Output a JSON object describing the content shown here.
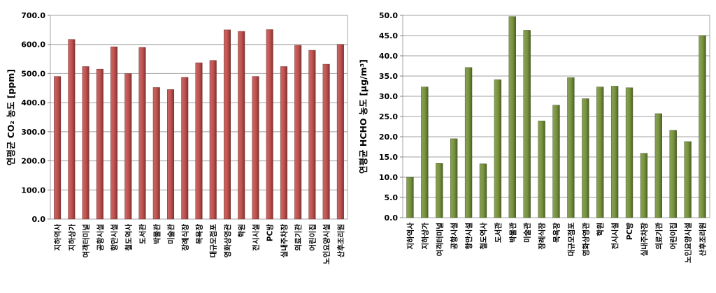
{
  "chart_data": [
    {
      "type": "bar",
      "ylabel": "연평균 CO₂ 농도 [ppm]",
      "ylim": [
        0,
        700
      ],
      "ytick_step": 100,
      "ytick_labels": [
        "0.0",
        "100.0",
        "200.0",
        "300.0",
        "400.0",
        "500.0",
        "600.0",
        "700.0"
      ],
      "grid": true,
      "bar_color": "#c0504d",
      "categories": [
        "지하역사",
        "지하상가",
        "여객터미널",
        "공항시설",
        "항만시설",
        "철도역사",
        "도서관",
        "박물관",
        "미술관",
        "장례식장",
        "목욕장",
        "대규모점포",
        "영화상영관",
        "학원",
        "전시시설",
        "PC방",
        "실내주차장",
        "의료기관",
        "어린이집",
        "노인요양시설",
        "산후조리원"
      ],
      "values": [
        490,
        617,
        524,
        515,
        592,
        500,
        590,
        452,
        445,
        487,
        537,
        545,
        650,
        645,
        490,
        651,
        524,
        597,
        580,
        532,
        600
      ]
    },
    {
      "type": "bar",
      "ylabel": "연평균 HCHO 농도 [μg/m³]",
      "ylim": [
        0,
        50
      ],
      "ytick_step": 5,
      "ytick_labels": [
        "0.0",
        "5.0",
        "10.0",
        "15.0",
        "20.0",
        "25.0",
        "30.0",
        "35.0",
        "40.0",
        "45.0",
        "50.0"
      ],
      "grid": true,
      "bar_color": "#77933c",
      "categories": [
        "지하역사",
        "지하상가",
        "여객터미널",
        "공항시설",
        "항만시설",
        "철도역사",
        "도서관",
        "박물관",
        "미술관",
        "장례식장",
        "목욕장",
        "대규모점포",
        "영화상영관",
        "학원",
        "전시시설",
        "PC방",
        "실내주차장",
        "의료기관",
        "어린이집",
        "노인요양시설",
        "산후조리원"
      ],
      "values": [
        10.0,
        32.3,
        13.4,
        19.5,
        37.1,
        13.3,
        34.1,
        49.7,
        46.3,
        23.9,
        27.8,
        34.6,
        29.4,
        32.3,
        32.5,
        32.1,
        15.9,
        25.7,
        21.6,
        18.8,
        45.0
      ]
    }
  ]
}
